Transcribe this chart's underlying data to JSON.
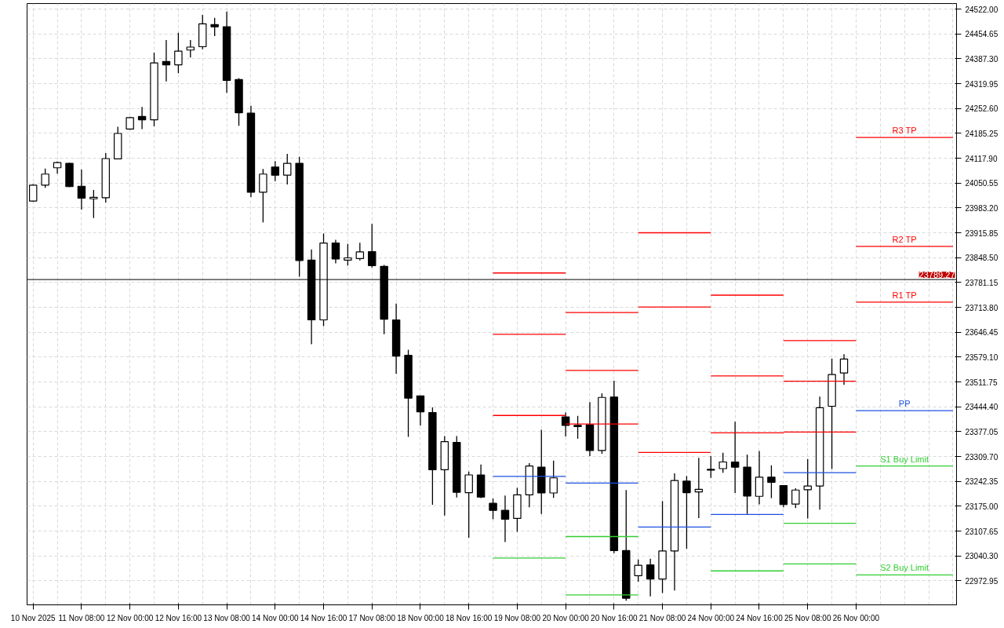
{
  "chart_data": {
    "type": "candlestick",
    "categories": [
      "10 Nov 2025",
      null,
      null,
      null,
      "11 Nov 08:00",
      null,
      null,
      null,
      "12 Nov 00:00",
      null,
      null,
      null,
      "12 Nov 16:00",
      null,
      null,
      null,
      "13 Nov 08:00",
      null,
      null,
      null,
      "14 Nov 00:00",
      null,
      null,
      null,
      "14 Nov 16:00",
      null,
      null,
      null,
      "17 Nov 08:00",
      null,
      null,
      null,
      "18 Nov 00:00",
      null,
      null,
      null,
      "18 Nov 16:00",
      null,
      null,
      null,
      "19 Nov 08:00",
      null,
      null,
      null,
      "20 Nov 00:00",
      null,
      null,
      null,
      "20 Nov 16:00",
      null,
      null,
      null,
      "21 Nov 08:00",
      null,
      null,
      null,
      "24 Nov 00:00",
      null,
      null,
      null,
      "24 Nov 16:00",
      null,
      null,
      null,
      "25 Nov 08:00",
      null,
      null,
      null,
      "26 Nov 00:00",
      null,
      null,
      null,
      null,
      null,
      null,
      null,
      null
    ],
    "ohlc": [
      [
        24002,
        24048,
        24000,
        24045
      ],
      [
        24045,
        24090,
        24038,
        24075
      ],
      [
        24092,
        24109,
        24076,
        24106
      ],
      [
        24104,
        24106,
        24040,
        24041
      ],
      [
        24042,
        24087,
        23979,
        24010
      ],
      [
        24008,
        24032,
        23956,
        24012
      ],
      [
        24011,
        24132,
        23998,
        24117
      ],
      [
        24116,
        24203,
        24115,
        24185
      ],
      [
        24197,
        24230,
        24195,
        24228
      ],
      [
        24231,
        24257,
        24197,
        24222
      ],
      [
        24222,
        24404,
        24204,
        24376
      ],
      [
        24380,
        24438,
        24326,
        24371
      ],
      [
        24371,
        24458,
        24348,
        24408
      ],
      [
        24411,
        24438,
        24391,
        24419
      ],
      [
        24420,
        24506,
        24413,
        24482
      ],
      [
        24480,
        24498,
        24449,
        24474
      ],
      [
        24474,
        24515,
        24295,
        24329
      ],
      [
        24331,
        24335,
        24206,
        24241
      ],
      [
        24240,
        24260,
        24013,
        24026
      ],
      [
        24026,
        24089,
        23944,
        24075
      ],
      [
        24094,
        24110,
        24056,
        24072
      ],
      [
        24072,
        24130,
        24047,
        24104
      ],
      [
        24104,
        24122,
        23797,
        23841
      ],
      [
        23842,
        23871,
        23614,
        23680
      ],
      [
        23680,
        23914,
        23663,
        23888
      ],
      [
        23888,
        23897,
        23833,
        23845
      ],
      [
        23842,
        23886,
        23827,
        23848
      ],
      [
        23846,
        23889,
        23841,
        23864
      ],
      [
        23865,
        23940,
        23822,
        23827
      ],
      [
        23825,
        23829,
        23641,
        23682
      ],
      [
        23680,
        23724,
        23534,
        23582
      ],
      [
        23584,
        23599,
        23363,
        23468
      ],
      [
        23474,
        23475,
        23394,
        23431
      ],
      [
        23429,
        23443,
        23179,
        23274
      ],
      [
        23274,
        23365,
        23150,
        23350
      ],
      [
        23348,
        23365,
        23199,
        23213
      ],
      [
        23212,
        23269,
        23090,
        23260
      ],
      [
        23260,
        23288,
        23197,
        23200
      ],
      [
        23183,
        23196,
        23140,
        23164
      ],
      [
        23164,
        23204,
        23078,
        23140
      ],
      [
        23142,
        23225,
        23106,
        23206
      ],
      [
        23206,
        23292,
        23172,
        23284
      ],
      [
        23281,
        23382,
        23154,
        23211
      ],
      [
        23211,
        23299,
        23198,
        23252
      ],
      [
        23417,
        23429,
        23364,
        23394
      ],
      [
        23394,
        23420,
        23358,
        23391
      ],
      [
        23396,
        23457,
        23311,
        23326
      ],
      [
        23326,
        23481,
        23317,
        23470
      ],
      [
        23471,
        23515,
        23048,
        23055
      ],
      [
        23055,
        23219,
        22919,
        22926
      ],
      [
        22987,
        23031,
        22971,
        23015
      ],
      [
        23016,
        23033,
        22931,
        22978
      ],
      [
        22978,
        23189,
        22940,
        23054
      ],
      [
        23054,
        23264,
        22947,
        23245
      ],
      [
        23243,
        23257,
        23060,
        23212
      ],
      [
        23214,
        23306,
        23143,
        23221
      ],
      [
        23275,
        23311,
        23252,
        23273
      ],
      [
        23277,
        23320,
        23266,
        23295
      ],
      [
        23295,
        23404,
        23211,
        23281
      ],
      [
        23281,
        23315,
        23154,
        23203
      ],
      [
        23202,
        23325,
        23180,
        23254
      ],
      [
        23254,
        23286,
        23197,
        23240
      ],
      [
        23231,
        23232,
        23172,
        23180
      ],
      [
        23181,
        23224,
        23170,
        23219
      ],
      [
        23220,
        23303,
        23142,
        23230
      ],
      [
        23230,
        23472,
        23166,
        23442
      ],
      [
        23446,
        23575,
        23276,
        23532
      ],
      [
        23536,
        23587,
        23504,
        23574
      ],
      null,
      null,
      null,
      null,
      null,
      null,
      null,
      null,
      null
    ],
    "series": [
      {
        "type": "line",
        "color": "#ff0000",
        "values": [
          null,
          null,
          null,
          null,
          null,
          null,
          null,
          null,
          null,
          null,
          null,
          null,
          null,
          null,
          null,
          null,
          null,
          null,
          null,
          null,
          null,
          null,
          null,
          null,
          null,
          null,
          null,
          null,
          null,
          null,
          null,
          null,
          null,
          null,
          null,
          null,
          null,
          null,
          23807,
          23807,
          23807,
          23807,
          23807,
          23807,
          23807,
          null,
          null,
          null,
          null,
          null,
          23916,
          23916,
          23916,
          23916,
          23916,
          23916,
          23916,
          null,
          null,
          null,
          null,
          null,
          23624,
          23624,
          23624,
          23624,
          23624,
          23624,
          23624,
          null,
          null,
          null,
          null,
          null,
          null,
          null,
          null
        ]
      },
      {
        "type": "line",
        "color": "#ff0000",
        "values": [
          null,
          null,
          null,
          null,
          null,
          null,
          null,
          null,
          null,
          null,
          null,
          null,
          null,
          null,
          null,
          null,
          null,
          null,
          null,
          null,
          null,
          null,
          null,
          null,
          null,
          null,
          null,
          null,
          null,
          null,
          null,
          null,
          null,
          null,
          null,
          null,
          null,
          null,
          23641,
          23641,
          23641,
          23641,
          23641,
          23641,
          23641,
          null,
          null,
          null,
          null,
          null,
          23715,
          23715,
          23715,
          23715,
          23715,
          23715,
          23715,
          null,
          null,
          null,
          null,
          null,
          23514,
          23514,
          23514,
          23514,
          23514,
          23514,
          23514,
          null,
          null,
          null,
          null,
          null,
          null,
          null,
          null
        ]
      },
      {
        "type": "line",
        "color": "#ff0000",
        "values": [
          null,
          null,
          null,
          null,
          null,
          null,
          null,
          null,
          null,
          null,
          null,
          null,
          null,
          null,
          null,
          null,
          null,
          null,
          null,
          null,
          null,
          null,
          null,
          null,
          null,
          null,
          null,
          null,
          null,
          null,
          null,
          null,
          null,
          null,
          null,
          null,
          null,
          null,
          23421,
          23421,
          23421,
          23421,
          23421,
          23421,
          23421,
          null,
          null,
          null,
          null,
          null,
          23321,
          23321,
          23321,
          23321,
          23321,
          23321,
          23321,
          null,
          null,
          null,
          null,
          null,
          23376,
          23376,
          23376,
          23376,
          23376,
          23376,
          23376,
          null,
          null,
          null,
          null,
          null,
          null,
          null,
          null
        ]
      },
      {
        "type": "line",
        "color": "#1e50e0",
        "values": [
          null,
          null,
          null,
          null,
          null,
          null,
          null,
          null,
          null,
          null,
          null,
          null,
          null,
          null,
          null,
          null,
          null,
          null,
          null,
          null,
          null,
          null,
          null,
          null,
          null,
          null,
          null,
          null,
          null,
          null,
          null,
          null,
          null,
          null,
          null,
          null,
          null,
          null,
          23256,
          23256,
          23256,
          23256,
          23256,
          23256,
          23256,
          null,
          null,
          null,
          null,
          null,
          23119,
          23119,
          23119,
          23119,
          23119,
          23119,
          23119,
          null,
          null,
          null,
          null,
          null,
          23266,
          23266,
          23266,
          23266,
          23266,
          23266,
          23266,
          null,
          null,
          null,
          null,
          null,
          null,
          null,
          null
        ]
      },
      {
        "type": "line",
        "color": "#32cd32",
        "values": [
          null,
          null,
          null,
          null,
          null,
          null,
          null,
          null,
          null,
          null,
          null,
          null,
          null,
          null,
          null,
          null,
          null,
          null,
          null,
          null,
          null,
          null,
          null,
          null,
          null,
          null,
          null,
          null,
          null,
          null,
          null,
          null,
          null,
          null,
          null,
          null,
          null,
          null,
          23035,
          23035,
          23035,
          23035,
          23035,
          23035,
          23035,
          null,
          null,
          null,
          null,
          null,
          null,
          null,
          null,
          null,
          null,
          null,
          null,
          null,
          null,
          null,
          null,
          null,
          23129,
          23129,
          23129,
          23129,
          23129,
          23129,
          23129,
          null,
          null,
          null,
          null,
          null,
          null,
          null,
          null
        ]
      },
      {
        "type": "line",
        "color": "#32cd32",
        "values": [
          null,
          null,
          null,
          null,
          null,
          null,
          null,
          null,
          null,
          null,
          null,
          null,
          null,
          null,
          null,
          null,
          null,
          null,
          null,
          null,
          null,
          null,
          null,
          null,
          null,
          null,
          null,
          null,
          null,
          null,
          null,
          null,
          null,
          null,
          null,
          null,
          null,
          null,
          null,
          null,
          null,
          null,
          null,
          null,
          null,
          null,
          null,
          null,
          null,
          null,
          null,
          null,
          null,
          null,
          null,
          null,
          null,
          null,
          null,
          null,
          null,
          null,
          23019,
          23019,
          23019,
          23019,
          23019,
          23019,
          23019,
          null,
          null,
          null,
          null,
          null,
          null,
          null,
          null
        ]
      },
      {
        "type": "line",
        "color": "#ff0000",
        "values": [
          null,
          null,
          null,
          null,
          null,
          null,
          null,
          null,
          null,
          null,
          null,
          null,
          null,
          null,
          null,
          null,
          null,
          null,
          null,
          null,
          null,
          null,
          null,
          null,
          null,
          null,
          null,
          null,
          null,
          null,
          null,
          null,
          null,
          null,
          null,
          null,
          null,
          null,
          null,
          null,
          null,
          null,
          null,
          null,
          23700,
          23700,
          23700,
          23700,
          23700,
          23700,
          23700,
          null,
          null,
          null,
          null,
          null,
          23747,
          23747,
          23747,
          23747,
          23747,
          23747,
          23747,
          null,
          null,
          null,
          null,
          null,
          null,
          null,
          null,
          null,
          null,
          null,
          null,
          null,
          null
        ]
      },
      {
        "type": "line",
        "color": "#ff0000",
        "values": [
          null,
          null,
          null,
          null,
          null,
          null,
          null,
          null,
          null,
          null,
          null,
          null,
          null,
          null,
          null,
          null,
          null,
          null,
          null,
          null,
          null,
          null,
          null,
          null,
          null,
          null,
          null,
          null,
          null,
          null,
          null,
          null,
          null,
          null,
          null,
          null,
          null,
          null,
          null,
          null,
          null,
          null,
          null,
          null,
          23543,
          23543,
          23543,
          23543,
          23543,
          23543,
          23543,
          null,
          null,
          null,
          null,
          null,
          23528,
          23528,
          23528,
          23528,
          23528,
          23528,
          23528,
          null,
          null,
          null,
          null,
          null,
          null,
          null,
          null,
          null,
          null,
          null,
          null,
          null,
          null
        ]
      },
      {
        "type": "line",
        "color": "#ff0000",
        "values": [
          null,
          null,
          null,
          null,
          null,
          null,
          null,
          null,
          null,
          null,
          null,
          null,
          null,
          null,
          null,
          null,
          null,
          null,
          null,
          null,
          null,
          null,
          null,
          null,
          null,
          null,
          null,
          null,
          null,
          null,
          null,
          null,
          null,
          null,
          null,
          null,
          null,
          null,
          null,
          null,
          null,
          null,
          null,
          null,
          23398,
          23398,
          23398,
          23398,
          23398,
          23398,
          23398,
          null,
          null,
          null,
          null,
          null,
          23374,
          23374,
          23374,
          23374,
          23374,
          23374,
          23374,
          null,
          null,
          null,
          null,
          null,
          null,
          null,
          null,
          null,
          null,
          null,
          null,
          null,
          null
        ]
      },
      {
        "type": "line",
        "color": "#1e50e0",
        "values": [
          null,
          null,
          null,
          null,
          null,
          null,
          null,
          null,
          null,
          null,
          null,
          null,
          null,
          null,
          null,
          null,
          null,
          null,
          null,
          null,
          null,
          null,
          null,
          null,
          null,
          null,
          null,
          null,
          null,
          null,
          null,
          null,
          null,
          null,
          null,
          null,
          null,
          null,
          null,
          null,
          null,
          null,
          null,
          null,
          23238,
          23238,
          23238,
          23238,
          23238,
          23238,
          23238,
          null,
          null,
          null,
          null,
          null,
          23153,
          23153,
          23153,
          23153,
          23153,
          23153,
          23153,
          null,
          null,
          null,
          null,
          null,
          null,
          null,
          null,
          null,
          null,
          null,
          null,
          null,
          null
        ]
      },
      {
        "type": "line",
        "color": "#32cd32",
        "values": [
          null,
          null,
          null,
          null,
          null,
          null,
          null,
          null,
          null,
          null,
          null,
          null,
          null,
          null,
          null,
          null,
          null,
          null,
          null,
          null,
          null,
          null,
          null,
          null,
          null,
          null,
          null,
          null,
          null,
          null,
          null,
          null,
          null,
          null,
          null,
          null,
          null,
          null,
          null,
          null,
          null,
          null,
          null,
          null,
          23093,
          23093,
          23093,
          23093,
          23093,
          23093,
          23093,
          null,
          null,
          null,
          null,
          null,
          23000,
          23000,
          23000,
          23000,
          23000,
          23000,
          23000,
          null,
          null,
          null,
          null,
          null,
          null,
          null,
          null,
          null,
          null,
          null,
          null,
          null,
          null
        ]
      },
      {
        "type": "line",
        "color": "#32cd32",
        "values": [
          null,
          null,
          null,
          null,
          null,
          null,
          null,
          null,
          null,
          null,
          null,
          null,
          null,
          null,
          null,
          null,
          null,
          null,
          null,
          null,
          null,
          null,
          null,
          null,
          null,
          null,
          null,
          null,
          null,
          null,
          null,
          null,
          null,
          null,
          null,
          null,
          null,
          null,
          null,
          null,
          null,
          null,
          null,
          null,
          22935,
          22935,
          22935,
          22935,
          22935,
          22935,
          22935,
          null,
          null,
          null,
          null,
          null,
          null,
          null,
          null,
          null,
          null,
          null,
          null,
          null,
          null,
          null,
          null,
          null,
          null,
          null,
          null,
          null,
          null,
          null,
          null,
          null,
          null
        ]
      },
      {
        "type": "line",
        "name": "R3 TP",
        "color": "#ff0000",
        "values": [
          null,
          null,
          null,
          null,
          null,
          null,
          null,
          null,
          null,
          null,
          null,
          null,
          null,
          null,
          null,
          null,
          null,
          null,
          null,
          null,
          null,
          null,
          null,
          null,
          null,
          null,
          null,
          null,
          null,
          null,
          null,
          null,
          null,
          null,
          null,
          null,
          null,
          null,
          null,
          null,
          null,
          null,
          null,
          null,
          null,
          null,
          null,
          null,
          null,
          null,
          null,
          null,
          null,
          null,
          null,
          null,
          null,
          null,
          null,
          null,
          null,
          null,
          null,
          null,
          null,
          null,
          null,
          null,
          24174,
          24174,
          24174,
          24174,
          24174,
          24174,
          24174,
          24174,
          24174
        ]
      },
      {
        "type": "line",
        "name": "R2 TP",
        "color": "#ff0000",
        "values": [
          null,
          null,
          null,
          null,
          null,
          null,
          null,
          null,
          null,
          null,
          null,
          null,
          null,
          null,
          null,
          null,
          null,
          null,
          null,
          null,
          null,
          null,
          null,
          null,
          null,
          null,
          null,
          null,
          null,
          null,
          null,
          null,
          null,
          null,
          null,
          null,
          null,
          null,
          null,
          null,
          null,
          null,
          null,
          null,
          null,
          null,
          null,
          null,
          null,
          null,
          null,
          null,
          null,
          null,
          null,
          null,
          null,
          null,
          null,
          null,
          null,
          null,
          null,
          null,
          null,
          null,
          null,
          null,
          23879,
          23879,
          23879,
          23879,
          23879,
          23879,
          23879,
          23879,
          23879
        ]
      },
      {
        "type": "line",
        "name": "R1 TP",
        "color": "#ff0000",
        "values": [
          null,
          null,
          null,
          null,
          null,
          null,
          null,
          null,
          null,
          null,
          null,
          null,
          null,
          null,
          null,
          null,
          null,
          null,
          null,
          null,
          null,
          null,
          null,
          null,
          null,
          null,
          null,
          null,
          null,
          null,
          null,
          null,
          null,
          null,
          null,
          null,
          null,
          null,
          null,
          null,
          null,
          null,
          null,
          null,
          null,
          null,
          null,
          null,
          null,
          null,
          null,
          null,
          null,
          null,
          null,
          null,
          null,
          null,
          null,
          null,
          null,
          null,
          null,
          null,
          null,
          null,
          null,
          null,
          23728,
          23728,
          23728,
          23728,
          23728,
          23728,
          23728,
          23728,
          23728
        ]
      },
      {
        "type": "line",
        "name": "PP",
        "color": "#1e50e0",
        "values": [
          null,
          null,
          null,
          null,
          null,
          null,
          null,
          null,
          null,
          null,
          null,
          null,
          null,
          null,
          null,
          null,
          null,
          null,
          null,
          null,
          null,
          null,
          null,
          null,
          null,
          null,
          null,
          null,
          null,
          null,
          null,
          null,
          null,
          null,
          null,
          null,
          null,
          null,
          null,
          null,
          null,
          null,
          null,
          null,
          null,
          null,
          null,
          null,
          null,
          null,
          null,
          null,
          null,
          null,
          null,
          null,
          null,
          null,
          null,
          null,
          null,
          null,
          null,
          null,
          null,
          null,
          null,
          null,
          23434,
          23434,
          23434,
          23434,
          23434,
          23434,
          23434,
          23434,
          23434
        ]
      },
      {
        "type": "line",
        "name": "S1 Buy Limit",
        "color": "#32cd32",
        "values": [
          null,
          null,
          null,
          null,
          null,
          null,
          null,
          null,
          null,
          null,
          null,
          null,
          null,
          null,
          null,
          null,
          null,
          null,
          null,
          null,
          null,
          null,
          null,
          null,
          null,
          null,
          null,
          null,
          null,
          null,
          null,
          null,
          null,
          null,
          null,
          null,
          null,
          null,
          null,
          null,
          null,
          null,
          null,
          null,
          null,
          null,
          null,
          null,
          null,
          null,
          null,
          null,
          null,
          null,
          null,
          null,
          null,
          null,
          null,
          null,
          null,
          null,
          null,
          null,
          null,
          null,
          null,
          null,
          23284,
          23284,
          23284,
          23284,
          23284,
          23284,
          23284,
          23284,
          23284
        ]
      },
      {
        "type": "line",
        "name": "S2 Buy Limit",
        "color": "#32cd32",
        "values": [
          null,
          null,
          null,
          null,
          null,
          null,
          null,
          null,
          null,
          null,
          null,
          null,
          null,
          null,
          null,
          null,
          null,
          null,
          null,
          null,
          null,
          null,
          null,
          null,
          null,
          null,
          null,
          null,
          null,
          null,
          null,
          null,
          null,
          null,
          null,
          null,
          null,
          null,
          null,
          null,
          null,
          null,
          null,
          null,
          null,
          null,
          null,
          null,
          null,
          null,
          null,
          null,
          null,
          null,
          null,
          null,
          null,
          null,
          null,
          null,
          null,
          null,
          null,
          null,
          null,
          null,
          null,
          null,
          22989,
          22989,
          22989,
          22989,
          22989,
          22989,
          22989,
          22989,
          22989
        ]
      }
    ],
    "ref_lines": [
      {
        "axis": "y",
        "value": 23789.27,
        "label": "23789.27",
        "color": "#000000"
      }
    ],
    "ylim": [
      22908,
      24537
    ],
    "yticks": [
      {
        "value": 22972.95,
        "label": "22972.95"
      },
      {
        "value": 23040.3,
        "label": "23040.30"
      },
      {
        "value": 23107.65,
        "label": "23107.65"
      },
      {
        "value": 23175,
        "label": "23175.00"
      },
      {
        "value": 23242.35,
        "label": "23242.35"
      },
      {
        "value": 23309.7,
        "label": "23309.70"
      },
      {
        "value": 23377.05,
        "label": "23377.05"
      },
      {
        "value": 23444.4,
        "label": "23444.40"
      },
      {
        "value": 23511.75,
        "label": "23511.75"
      },
      {
        "value": 23579.1,
        "label": "23579.10"
      },
      {
        "value": 23646.45,
        "label": "23646.45"
      },
      {
        "value": 23713.8,
        "label": "23713.80"
      },
      {
        "value": 23781.15,
        "label": "23781.15"
      },
      {
        "value": 23848.5,
        "label": "23848.50"
      },
      {
        "value": 23915.85,
        "label": "23915.85"
      },
      {
        "value": 23983.2,
        "label": "23983.20"
      },
      {
        "value": 24050.55,
        "label": "24050.55"
      },
      {
        "value": 24117.9,
        "label": "24117.90"
      },
      {
        "value": 24185.25,
        "label": "24185.25"
      },
      {
        "value": 24252.6,
        "label": "24252.60"
      },
      {
        "value": 24319.95,
        "label": "24319.95"
      },
      {
        "value": 24387.3,
        "label": "24387.30"
      },
      {
        "value": 24454.65,
        "label": "24454.65"
      },
      {
        "value": 24522,
        "label": "24522.00"
      }
    ],
    "grid": true
  }
}
